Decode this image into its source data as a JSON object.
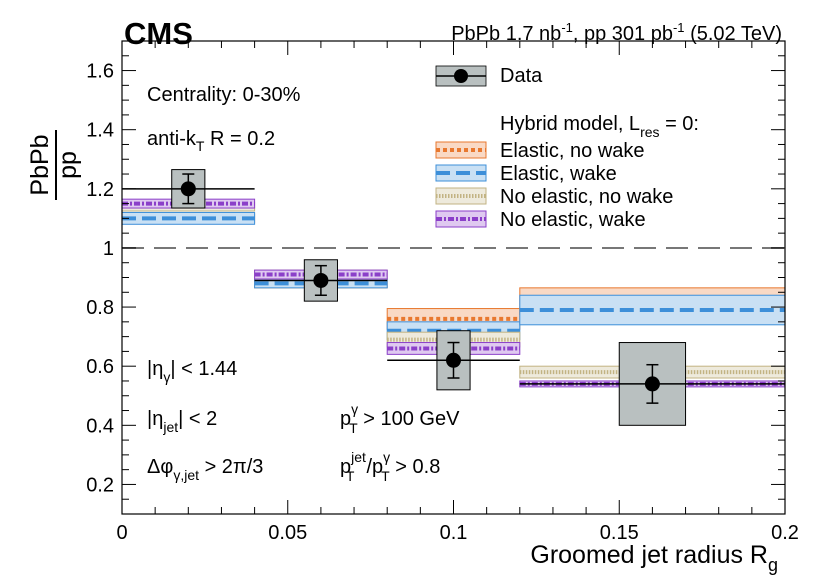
{
  "header": {
    "experiment": "CMS",
    "lumi_prefix": "PbPb 1.7 nb",
    "lumi_exp1": "-1",
    "lumi_mid": ", pp 301 pb",
    "lumi_exp2": "-1",
    "lumi_suffix": " (5.02 TeV)"
  },
  "annotations": {
    "centrality": "Centrality: 0-30%",
    "antikt_pre": "anti-k",
    "antikt_sub": "T",
    "antikt_post": " R = 0.2",
    "eta_gamma_pre": "|η",
    "eta_gamma_sub": "γ",
    "eta_gamma_post": "| < 1.44",
    "eta_jet_pre": "|η",
    "eta_jet_sub": "jet",
    "eta_jet_post": "| < 2",
    "dphi_pre": "Δφ",
    "dphi_sub": "γ,jet",
    "dphi_post": " > 2π/3",
    "pt_pre": "p",
    "pt_sup": "γ",
    "pt_sub": "T",
    "pt_post": " > 100 GeV",
    "ratio_p1": "p",
    "ratio_sup1": "jet",
    "ratio_sub1": "T",
    "ratio_mid": "/p",
    "ratio_sup2": "γ",
    "ratio_sub2": "T",
    "ratio_post": " > 0.8"
  },
  "legend": {
    "data": "Data",
    "model_header_pre": "Hybrid model, L",
    "model_header_sub": "res",
    "model_header_post": " = 0:",
    "items": [
      "Elastic, no wake",
      "Elastic, wake",
      "No elastic, no wake",
      "No elastic, wake"
    ]
  },
  "colors": {
    "elastic_no_wake": "#e8782f",
    "elastic_wake": "#3d8fd9",
    "no_elastic_no_wake": "#c2b383",
    "no_elastic_wake": "#8b3fc9",
    "data_box": "#b9c0c0"
  },
  "chart_data": {
    "type": "bar",
    "xlabel_main": "Groomed jet radius R",
    "xlabel_sub": "g",
    "ylabel_num": "PbPb",
    "ylabel_den": "pp",
    "xlim": [
      0,
      0.2
    ],
    "ylim": [
      0.1,
      1.7
    ],
    "xticks": [
      0,
      0.05,
      0.1,
      0.15,
      0.2
    ],
    "xtick_labels": [
      "0",
      "0.05",
      "0.1",
      "0.15",
      "0.2"
    ],
    "yticks": [
      0.2,
      0.4,
      0.6,
      0.8,
      1.0,
      1.2,
      1.4,
      1.6
    ],
    "ytick_labels": [
      "0.2",
      "0.4",
      "0.6",
      "0.8",
      "1",
      "1.2",
      "1.4",
      "1.6"
    ],
    "reference_line": 1.0,
    "bins": [
      [
        0,
        0.04
      ],
      [
        0.04,
        0.08
      ],
      [
        0.08,
        0.12
      ],
      [
        0.12,
        0.2
      ]
    ],
    "data": {
      "name": "Data",
      "x": [
        0.02,
        0.06,
        0.1,
        0.16
      ],
      "y": [
        1.2,
        0.89,
        0.62,
        0.54
      ],
      "stat_err": [
        0.05,
        0.05,
        0.06,
        0.065
      ],
      "syst_err": [
        0.065,
        0.07,
        0.1,
        0.14
      ],
      "syst_halfwidth": [
        0.005,
        0.005,
        0.005,
        0.01
      ]
    },
    "series": [
      {
        "name": "Elastic, no wake",
        "key": "elastic_no_wake",
        "values": [
          1.1,
          0.88,
          0.76,
          0.82
        ],
        "band": [
          0.015,
          0.015,
          0.035,
          0.045
        ]
      },
      {
        "name": "Elastic, wake",
        "key": "elastic_wake",
        "values": [
          1.1,
          0.88,
          0.72,
          0.79
        ],
        "band": [
          0.02,
          0.015,
          0.03,
          0.05
        ]
      },
      {
        "name": "No elastic, no wake",
        "key": "no_elastic_no_wake",
        "values": [
          1.14,
          0.91,
          0.69,
          0.58
        ],
        "band": [
          0.015,
          0.015,
          0.025,
          0.02
        ]
      },
      {
        "name": "No elastic, wake",
        "key": "no_elastic_wake",
        "values": [
          1.15,
          0.91,
          0.66,
          0.54
        ],
        "band": [
          0.015,
          0.015,
          0.02,
          0.01
        ]
      }
    ]
  }
}
